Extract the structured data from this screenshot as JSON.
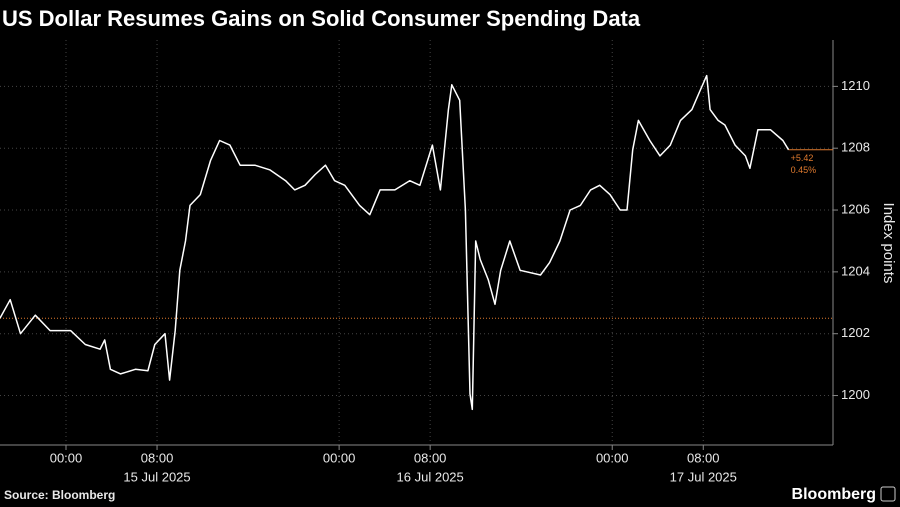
{
  "chart_data": {
    "type": "line",
    "title": "US Dollar Resumes Gains on Solid Consumer Spending Data",
    "y_label": "Index points",
    "source": "Source: Bloomberg",
    "brand": "Bloomberg",
    "xlim": [
      18.2,
      91.4
    ],
    "ylim": [
      1198.4,
      1211.5
    ],
    "xticks": [
      {
        "value": 24,
        "label": "00:00"
      },
      {
        "value": 32,
        "label": "08:00"
      },
      {
        "value": 48,
        "label": "00:00"
      },
      {
        "value": 56,
        "label": "08:00"
      },
      {
        "value": 72,
        "label": "00:00"
      },
      {
        "value": 80,
        "label": "08:00"
      }
    ],
    "date_labels": [
      {
        "value": 32,
        "label": "15 Jul 2025"
      },
      {
        "value": 56,
        "label": "16 Jul 2025"
      },
      {
        "value": 80,
        "label": "17 Jul 2025"
      }
    ],
    "yticks": [
      1200,
      1202,
      1204,
      1206,
      1208,
      1210
    ],
    "grid": true,
    "reference_line": 1202.5,
    "reference_color": "#e07a2e",
    "last_change": "+5.42",
    "last_change_pct": "0.45%",
    "series": [
      {
        "name": "US Dollar Index",
        "color": "#ffffff",
        "x": [
          18.2,
          19.1,
          20.0,
          21.3,
          22.6,
          24.4,
          25.7,
          27.0,
          27.4,
          27.9,
          28.8,
          30.1,
          31.2,
          31.8,
          32.7,
          33.1,
          33.6,
          34.0,
          34.5,
          34.9,
          35.8,
          36.7,
          37.5,
          38.4,
          39.3,
          40.6,
          41.9,
          43.3,
          44.1,
          45.0,
          45.9,
          46.8,
          47.6,
          48.5,
          49.8,
          50.7,
          51.6,
          52.9,
          54.2,
          55.1,
          56.2,
          56.9,
          57.6,
          57.9,
          58.6,
          59.1,
          59.5,
          59.7,
          60.0,
          60.4,
          61.1,
          61.7,
          62.2,
          63.0,
          63.9,
          65.7,
          66.5,
          67.4,
          68.3,
          69.2,
          70.1,
          70.9,
          71.8,
          72.7,
          73.3,
          73.8,
          74.3,
          75.3,
          76.2,
          77.1,
          78.0,
          79.0,
          79.7,
          80.3,
          80.6,
          81.3,
          81.9,
          82.8,
          83.7,
          84.1,
          84.8,
          85.9,
          87.0,
          87.5
        ],
        "values": [
          1202.5,
          1203.1,
          1202.0,
          1202.6,
          1202.1,
          1202.1,
          1201.65,
          1201.5,
          1201.8,
          1200.85,
          1200.7,
          1200.85,
          1200.8,
          1201.65,
          1202.0,
          1200.5,
          1202.1,
          1204.05,
          1205.0,
          1206.15,
          1206.5,
          1207.6,
          1208.25,
          1208.1,
          1207.45,
          1207.45,
          1207.3,
          1206.95,
          1206.65,
          1206.8,
          1207.15,
          1207.45,
          1206.95,
          1206.8,
          1206.15,
          1205.85,
          1206.65,
          1206.65,
          1206.95,
          1206.8,
          1208.1,
          1206.65,
          1209.25,
          1210.05,
          1209.55,
          1206.0,
          1200.05,
          1199.55,
          1205.0,
          1204.4,
          1203.75,
          1202.95,
          1204.05,
          1205.0,
          1204.05,
          1203.9,
          1204.3,
          1205.0,
          1206.0,
          1206.15,
          1206.65,
          1206.8,
          1206.5,
          1206.0,
          1206.0,
          1207.95,
          1208.9,
          1208.25,
          1207.75,
          1208.1,
          1208.9,
          1209.25,
          1209.85,
          1210.35,
          1209.25,
          1208.9,
          1208.75,
          1208.1,
          1207.75,
          1207.35,
          1208.6,
          1208.6,
          1208.25,
          1207.95
        ]
      }
    ]
  }
}
